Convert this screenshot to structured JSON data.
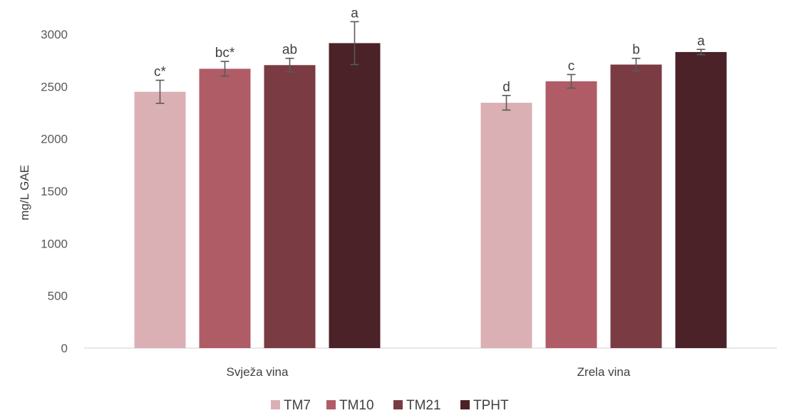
{
  "chart_data": {
    "type": "bar",
    "title": "",
    "xlabel": "",
    "ylabel": "mg/L GAE",
    "ylim": [
      0,
      3000
    ],
    "yticks": [
      0,
      500,
      1000,
      1500,
      2000,
      2500,
      3000
    ],
    "categories": [
      "Svježa vina",
      "Zrela vina"
    ],
    "grid": false,
    "legend_position": "bottom",
    "series": [
      {
        "name": "TM7",
        "color": "#dbb0b5",
        "values": [
          2450,
          2345
        ],
        "errors": [
          110,
          70
        ],
        "labels": [
          "c*",
          "d"
        ]
      },
      {
        "name": "TM10",
        "color": "#b05c66",
        "values": [
          2670,
          2550
        ],
        "errors": [
          70,
          65
        ],
        "labels": [
          "bc*",
          "c"
        ]
      },
      {
        "name": "TM21",
        "color": "#7a3b43",
        "values": [
          2705,
          2710
        ],
        "errors": [
          65,
          60
        ],
        "labels": [
          "ab",
          "b"
        ]
      },
      {
        "name": "TPHT",
        "color": "#4a2228",
        "values": [
          2915,
          2830
        ],
        "errors": [
          205,
          25
        ],
        "labels": [
          "a",
          "a"
        ]
      }
    ]
  }
}
